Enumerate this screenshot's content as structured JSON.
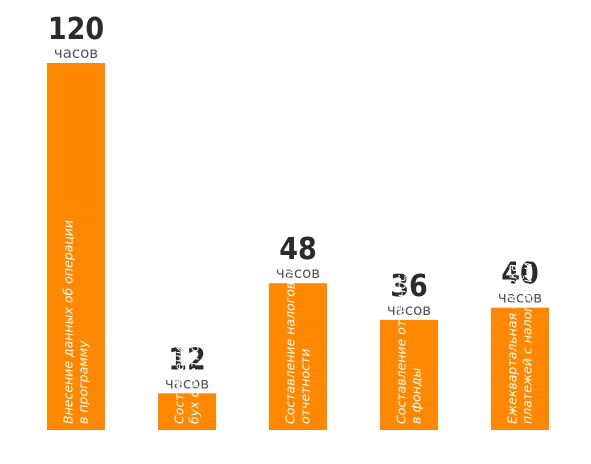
{
  "chart_data": {
    "type": "bar",
    "title": "",
    "xlabel": "",
    "ylabel": "",
    "unit_label": "часов",
    "categories": [
      "Внесение данных об операции\nв программу",
      "Составление форм\nбух отчетности",
      "Составление налоговой\nотчетности",
      "Составление отчетности\nв фонды",
      "Ежеквартальная сверка\nплатежей с налоговой инспекцией"
    ],
    "values": [
      120,
      12,
      48,
      36,
      40
    ],
    "ylim": [
      0,
      120
    ],
    "grid": false,
    "legend": "none",
    "colors": {
      "bar": "#FF8800",
      "value_text": "#2b2b2b",
      "unit_text": "#555555",
      "category_text": "#ffffff"
    }
  }
}
